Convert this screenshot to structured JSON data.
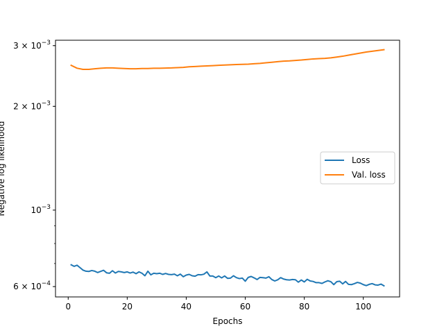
{
  "chart_data": {
    "type": "line",
    "xlabel": "Epochs",
    "ylabel": "Negative log likelihood",
    "xlim": [
      -4.3,
      112.3
    ],
    "ylim": [
      0.00056,
      0.00311
    ],
    "yscale": "log",
    "grid": false,
    "legend_position": "center-right",
    "x_ticks": [
      0,
      20,
      40,
      60,
      80,
      100
    ],
    "x_tick_labels": [
      "0",
      "20",
      "40",
      "60",
      "80",
      "100"
    ],
    "y_ticks": [
      0.0006,
      0.001,
      0.002,
      0.003
    ],
    "y_tick_labels": [
      {
        "mant": "6",
        "times": "×",
        "base": "10",
        "exp": "−4"
      },
      {
        "mant": "",
        "times": "",
        "base": "10",
        "exp": "−3"
      },
      {
        "mant": "2",
        "times": "×",
        "base": "10",
        "exp": "−3"
      },
      {
        "mant": "3",
        "times": "×",
        "base": "10",
        "exp": "−3"
      }
    ],
    "series": [
      {
        "name": "Loss",
        "color": "#1f77b4",
        "x": [
          1,
          2,
          3,
          4,
          5,
          6,
          7,
          8,
          9,
          10,
          11,
          12,
          13,
          14,
          15,
          16,
          17,
          18,
          19,
          20,
          21,
          22,
          23,
          24,
          25,
          26,
          27,
          28,
          29,
          30,
          31,
          32,
          33,
          34,
          35,
          36,
          37,
          38,
          39,
          40,
          41,
          42,
          43,
          44,
          45,
          46,
          47,
          48,
          49,
          50,
          51,
          52,
          53,
          54,
          55,
          56,
          57,
          58,
          59,
          60,
          61,
          62,
          63,
          64,
          65,
          66,
          67,
          68,
          69,
          70,
          71,
          72,
          73,
          74,
          75,
          76,
          77,
          78,
          79,
          80,
          81,
          82,
          83,
          84,
          85,
          86,
          87,
          88,
          89,
          90,
          91,
          92,
          93,
          94,
          95,
          96,
          97,
          98,
          99,
          100,
          101,
          102,
          103,
          104,
          105,
          106,
          107
        ],
        "values": [
          0.000694,
          0.000687,
          0.000692,
          0.000681,
          0.00067,
          0.000665,
          0.000664,
          0.000668,
          0.000665,
          0.000659,
          0.000664,
          0.000669,
          0.000658,
          0.000656,
          0.000667,
          0.000657,
          0.000664,
          0.000662,
          0.000659,
          0.000662,
          0.000657,
          0.000661,
          0.000654,
          0.000662,
          0.000656,
          0.000645,
          0.000665,
          0.000649,
          0.000656,
          0.000654,
          0.000656,
          0.000651,
          0.000655,
          0.000651,
          0.00065,
          0.000652,
          0.000645,
          0.000652,
          0.000641,
          0.000648,
          0.000651,
          0.000645,
          0.000643,
          0.00065,
          0.000649,
          0.000652,
          0.000662,
          0.000644,
          0.000644,
          0.000637,
          0.000644,
          0.000636,
          0.000644,
          0.000634,
          0.000635,
          0.000645,
          0.000637,
          0.000633,
          0.000635,
          0.000622,
          0.000638,
          0.000642,
          0.000636,
          0.000629,
          0.000638,
          0.000637,
          0.000635,
          0.000641,
          0.000629,
          0.000623,
          0.000628,
          0.000637,
          0.000631,
          0.000628,
          0.000627,
          0.000629,
          0.000628,
          0.000618,
          0.000627,
          0.000619,
          0.00063,
          0.000623,
          0.000621,
          0.000616,
          0.000616,
          0.000613,
          0.000619,
          0.000624,
          0.00062,
          0.000608,
          0.00062,
          0.000622,
          0.000611,
          0.000621,
          0.000609,
          0.000608,
          0.000612,
          0.000617,
          0.000614,
          0.000608,
          0.000604,
          0.000609,
          0.000612,
          0.000607,
          0.000606,
          0.00061,
          0.000603
        ]
      },
      {
        "name": "Val. loss",
        "color": "#ff7f0e",
        "x": [
          1,
          3,
          5,
          7,
          9,
          11,
          13,
          15,
          17,
          19,
          21,
          23,
          25,
          27,
          29,
          31,
          33,
          35,
          37,
          39,
          41,
          43,
          45,
          47,
          49,
          51,
          53,
          55,
          57,
          59,
          61,
          63,
          65,
          67,
          69,
          71,
          73,
          75,
          77,
          79,
          81,
          83,
          85,
          87,
          89,
          91,
          93,
          95,
          97,
          99,
          101,
          103,
          105,
          107
        ],
        "values": [
          0.00263,
          0.00258,
          0.00256,
          0.00256,
          0.00257,
          0.00258,
          0.002585,
          0.002585,
          0.00258,
          0.002575,
          0.00257,
          0.00257,
          0.002575,
          0.002575,
          0.00258,
          0.00258,
          0.002583,
          0.002585,
          0.00259,
          0.002595,
          0.002605,
          0.00261,
          0.002615,
          0.00262,
          0.002625,
          0.00263,
          0.002635,
          0.00264,
          0.002645,
          0.002648,
          0.00265,
          0.002658,
          0.002665,
          0.002675,
          0.002685,
          0.002695,
          0.002705,
          0.00271,
          0.002718,
          0.002725,
          0.002735,
          0.002745,
          0.00275,
          0.002755,
          0.002765,
          0.00278,
          0.002795,
          0.002815,
          0.002835,
          0.002855,
          0.002875,
          0.00289,
          0.002905,
          0.00292
        ]
      }
    ]
  }
}
